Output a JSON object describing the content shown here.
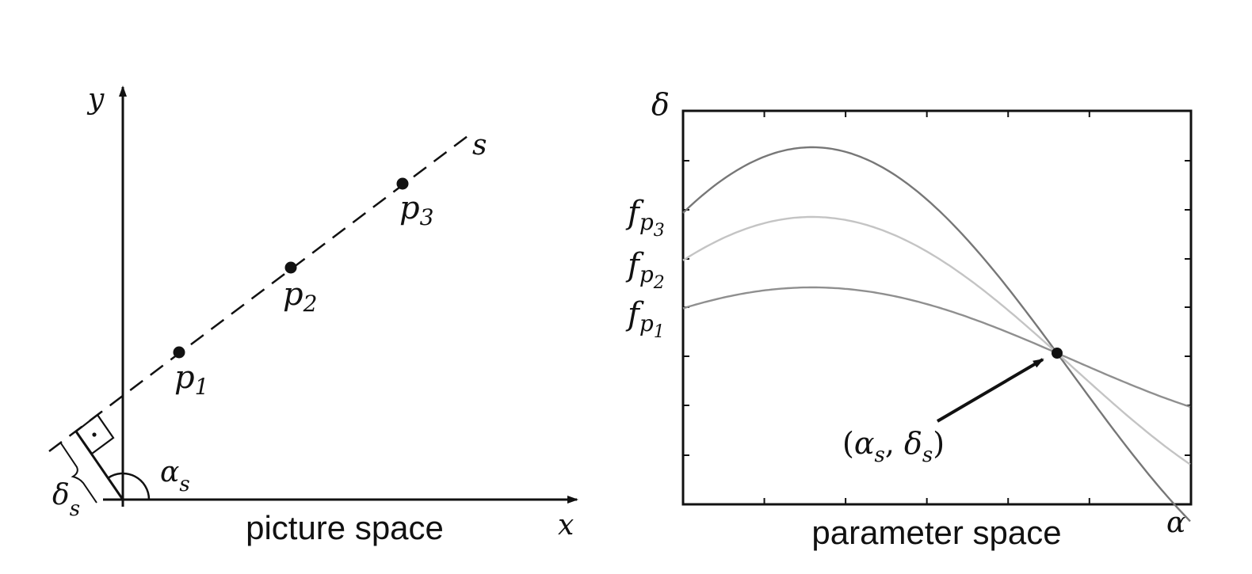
{
  "picture": {
    "axis_x": "x",
    "axis_y": "y",
    "line_label": "s",
    "angle_label": "α",
    "angle_sub": "s",
    "dist_label": "δ",
    "dist_sub": "s",
    "caption": "picture space",
    "points": [
      {
        "label": "p",
        "sub": "1"
      },
      {
        "label": "p",
        "sub": "2"
      },
      {
        "label": "p",
        "sub": "3"
      }
    ]
  },
  "parameter": {
    "axis_x": "α",
    "axis_y": "δ",
    "caption": "parameter space",
    "curve_labels": [
      {
        "label": "f",
        "sub": "p",
        "subsub": "3"
      },
      {
        "label": "f",
        "sub": "p",
        "subsub": "2"
      },
      {
        "label": "f",
        "sub": "p",
        "subsub": "1"
      }
    ],
    "intersection_label": {
      "open": "(",
      "a": "α",
      "a_sub": "s",
      "comma": ", ",
      "d": "δ",
      "d_sub": "s",
      "close": ")"
    },
    "colors": {
      "curve_p3": "#777777",
      "curve_p2": "#c4c4c4",
      "curve_p1": "#8f8f8f"
    }
  }
}
